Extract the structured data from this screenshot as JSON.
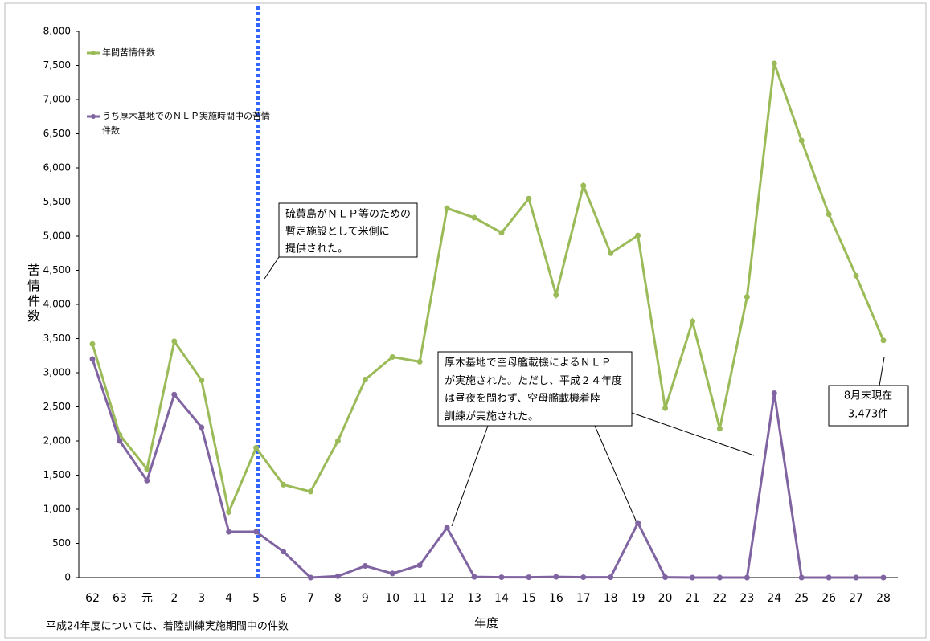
{
  "chart_data": {
    "type": "line",
    "y_label": "苦情件数",
    "x_label": "年度",
    "footnote": "平成24年度については、着陸訓練実施期間中の件数",
    "categories": [
      "62",
      "63",
      "元",
      "2",
      "3",
      "4",
      "5",
      "6",
      "7",
      "8",
      "9",
      "10",
      "11",
      "12",
      "13",
      "14",
      "15",
      "16",
      "17",
      "18",
      "19",
      "20",
      "21",
      "22",
      "23",
      "24",
      "25",
      "26",
      "27",
      "28"
    ],
    "series": [
      {
        "name": "年間苦情件数",
        "color": "#9bbb59",
        "values": [
          3420,
          2090,
          1590,
          3460,
          2890,
          960,
          1900,
          1360,
          1260,
          2000,
          2900,
          3230,
          3160,
          5410,
          5270,
          5050,
          5550,
          4140,
          5740,
          4750,
          5010,
          2480,
          3750,
          2180,
          4110,
          7530,
          6400,
          5320,
          4420,
          3473
        ]
      },
      {
        "name": "うち厚木基地でのＮＬＰ実施時間中の苦情件数",
        "color": "#8064a2",
        "values": [
          3200,
          2000,
          1420,
          2680,
          2200,
          670,
          670,
          380,
          0,
          20,
          170,
          60,
          180,
          730,
          10,
          5,
          5,
          10,
          5,
          5,
          800,
          5,
          0,
          0,
          0,
          2700,
          0,
          0,
          0,
          0
        ]
      }
    ],
    "ylim": [
      0,
      8000
    ],
    "yticks": [
      0,
      500,
      {
        "value": 1000,
        "label": "1,000"
      },
      {
        "value": 1500,
        "label": "1,500"
      },
      {
        "value": 2000,
        "label": "2,000"
      },
      {
        "value": 2500,
        "label": "2,500"
      },
      {
        "value": 3000,
        "label": "3,000"
      },
      {
        "value": 3500,
        "label": "3,500"
      },
      {
        "value": 4000,
        "label": "4,000"
      },
      {
        "value": 4500,
        "label": "4,500"
      },
      {
        "value": 5000,
        "label": "5,000"
      },
      {
        "value": 5500,
        "label": "5,500"
      },
      {
        "value": 6000,
        "label": "6,000"
      },
      {
        "value": 6500,
        "label": "6,500"
      },
      {
        "value": 7000,
        "label": "7,000"
      },
      {
        "value": 7500,
        "label": "7,500"
      },
      {
        "value": 8000,
        "label": "8,000"
      }
    ],
    "grid": false,
    "annotations": [
      {
        "lines": [
          "硫黄島がＮＬＰ等のための",
          "暫定施設として米側に",
          "提供された。"
        ]
      },
      {
        "lines": [
          "厚木基地で空母艦載機によるＮＬＰ",
          "が実施された。ただし、平成２４年度",
          "は昼夜を問わず、空母艦載機着陸",
          "訓練が実施された。"
        ]
      },
      {
        "lines": [
          "8月末現在",
          "3,473件"
        ]
      }
    ]
  }
}
